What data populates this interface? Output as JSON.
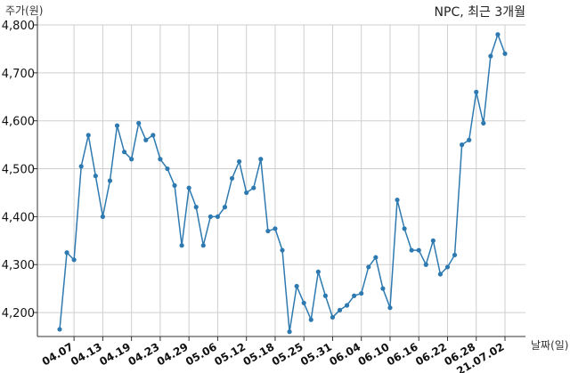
{
  "chart_data": {
    "type": "line",
    "title": "NPC, 최근 3개월",
    "ylabel": "주가(원)",
    "xlabel": "날짜(일)",
    "ylim": [
      4150,
      4800
    ],
    "yticks": [
      4200,
      4300,
      4400,
      4500,
      4600,
      4700,
      4800
    ],
    "ytick_labels": [
      "4,200",
      "4,300",
      "4,400",
      "4,500",
      "4,600",
      "4,700",
      "4,800"
    ],
    "xticks": [
      {
        "label": "04.07",
        "index": 2
      },
      {
        "label": "04.13",
        "index": 6
      },
      {
        "label": "04.19",
        "index": 10
      },
      {
        "label": "04.23",
        "index": 14
      },
      {
        "label": "04.29",
        "index": 18
      },
      {
        "label": "05.06",
        "index": 22
      },
      {
        "label": "05.12",
        "index": 26
      },
      {
        "label": "05.18",
        "index": 30
      },
      {
        "label": "05.25",
        "index": 34
      },
      {
        "label": "05.31",
        "index": 38
      },
      {
        "label": "06.04",
        "index": 42
      },
      {
        "label": "06.10",
        "index": 46
      },
      {
        "label": "06.16",
        "index": 50
      },
      {
        "label": "06.22",
        "index": 54
      },
      {
        "label": "06.28",
        "index": 58
      },
      {
        "label": "21.07.02",
        "index": 62
      }
    ],
    "grid": true,
    "series": [
      {
        "color": "#2e7ab0",
        "values": [
          4165,
          4325,
          4310,
          4505,
          4570,
          4485,
          4400,
          4475,
          4590,
          4535,
          4520,
          4595,
          4560,
          4570,
          4520,
          4500,
          4465,
          4340,
          4460,
          4420,
          4340,
          4400,
          4400,
          4420,
          4480,
          4515,
          4450,
          4460,
          4520,
          4370,
          4375,
          4330,
          4160,
          4255,
          4220,
          4185,
          4285,
          4235,
          4190,
          4205,
          4215,
          4235,
          4240,
          4295,
          4315,
          4250,
          4210,
          4435,
          4375,
          4330,
          4330,
          4300,
          4350,
          4280,
          4295,
          4320,
          4550,
          4560,
          4660,
          4595,
          4735,
          4780,
          4740
        ]
      }
    ]
  }
}
